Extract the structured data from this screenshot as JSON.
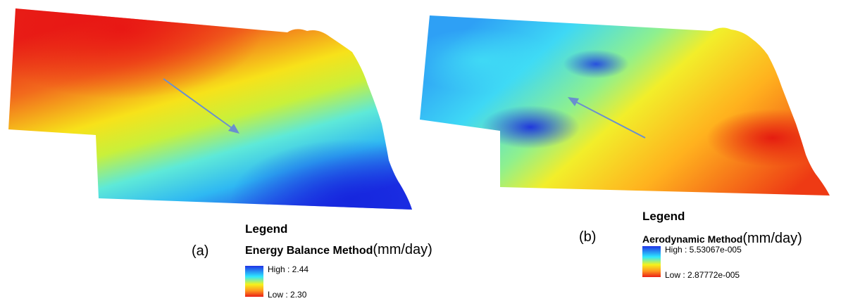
{
  "panel_a": {
    "label": "(a)",
    "legend_title": "Legend",
    "method": "Energy Balance Method",
    "unit": "(mm/day)",
    "high_label": "High : 2.44",
    "low_label": "Low : 2.30"
  },
  "panel_b": {
    "label": "(b)",
    "legend_title": "Legend",
    "method": "Aerodynamic Method",
    "unit": "(mm/day)",
    "high_label": "High : 5.53067e-005",
    "low_label": "Low : 2.87772e-005"
  },
  "colors": {
    "high": "#1f33e6",
    "mid_high": "#2ee8ff",
    "mid": "#f6f21a",
    "mid_low": "#ff9a1f",
    "low": "#ea1f18",
    "arrow": "#6a8fcf"
  }
}
